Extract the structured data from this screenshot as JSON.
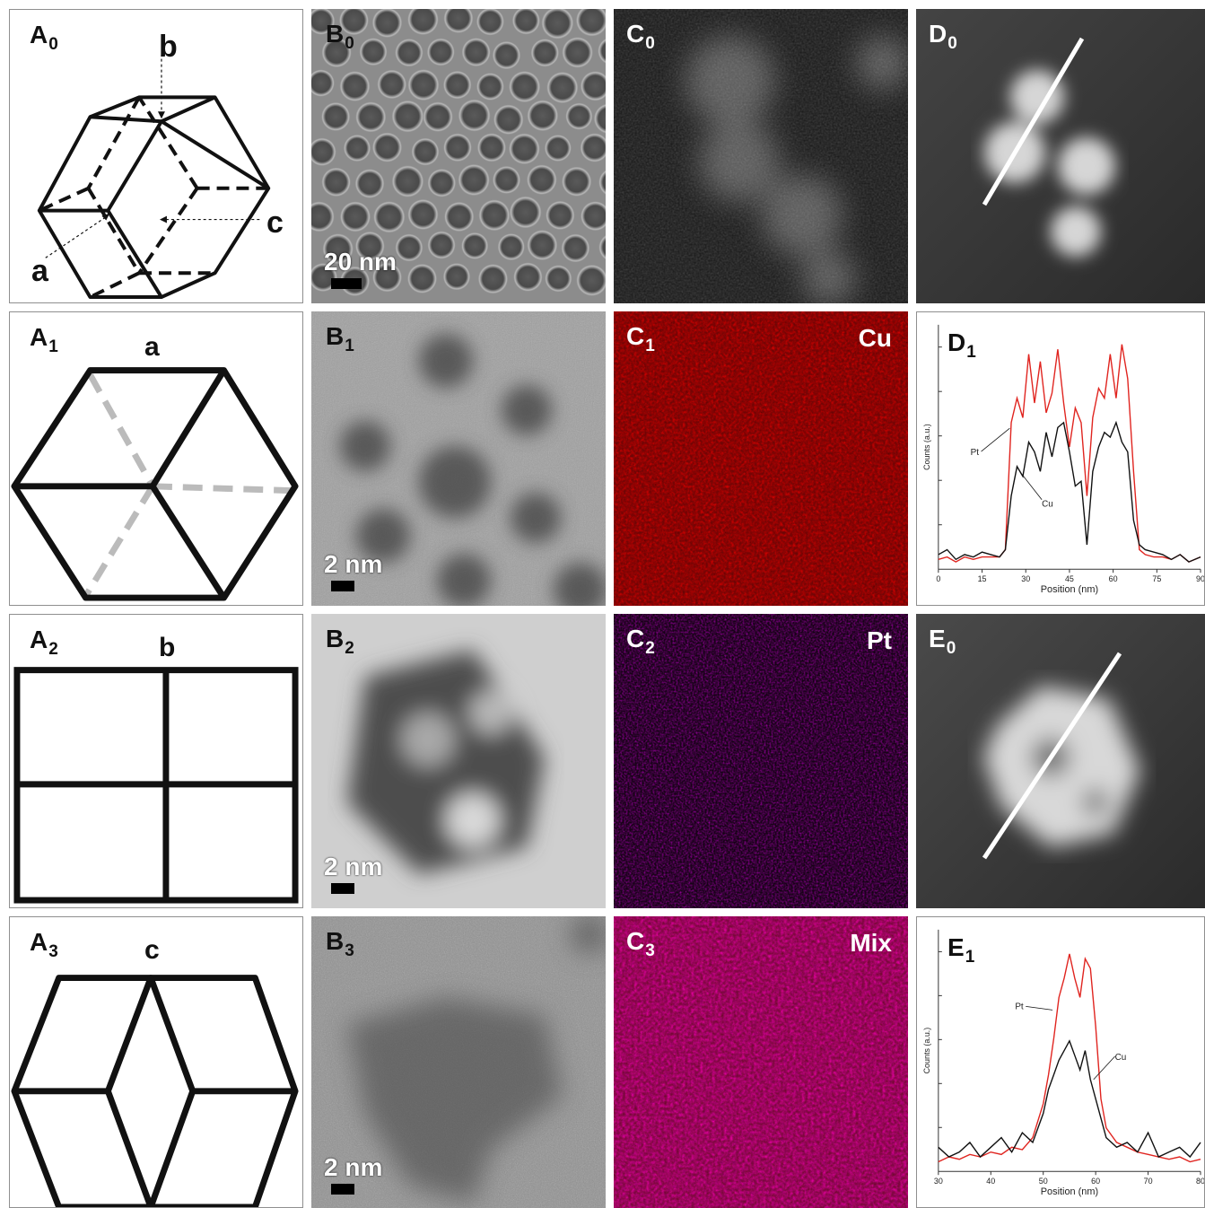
{
  "panels": {
    "A0": {
      "letter": "A",
      "sub": "0",
      "labels": {
        "a": "a",
        "b": "b",
        "c": "c"
      }
    },
    "A1": {
      "letter": "A",
      "sub": "1",
      "view": "a"
    },
    "A2": {
      "letter": "A",
      "sub": "2",
      "view": "b"
    },
    "A3": {
      "letter": "A",
      "sub": "3",
      "view": "c"
    },
    "B0": {
      "letter": "B",
      "sub": "0",
      "scale": "20 nm"
    },
    "B1": {
      "letter": "B",
      "sub": "1",
      "scale": "2 nm"
    },
    "B2": {
      "letter": "B",
      "sub": "2",
      "scale": "2 nm"
    },
    "B3": {
      "letter": "B",
      "sub": "3",
      "scale": "2 nm"
    },
    "C0": {
      "letter": "C",
      "sub": "0"
    },
    "C1": {
      "letter": "C",
      "sub": "1",
      "element": "Cu"
    },
    "C2": {
      "letter": "C",
      "sub": "2",
      "element": "Pt"
    },
    "C3": {
      "letter": "C",
      "sub": "3",
      "element": "Mix"
    },
    "D0": {
      "letter": "D",
      "sub": "0"
    },
    "D1": {
      "letter": "D",
      "sub": "1"
    },
    "E0": {
      "letter": "E",
      "sub": "0"
    },
    "E1": {
      "letter": "E",
      "sub": "1"
    }
  },
  "colors": {
    "pt": "#e0241f",
    "cu": "#111111",
    "cu_map": "#d01010",
    "pt_map": "#8a1a90",
    "mix_map": "#e0305a"
  },
  "chart_data": [
    {
      "id": "D1",
      "type": "line",
      "xlabel": "Position (nm)",
      "ylabel": "Counts (a.u.)",
      "xlim": [
        0,
        90
      ],
      "xticks": [
        "0",
        "15",
        "30",
        "45",
        "60",
        "75",
        "90"
      ],
      "annotations": [
        "Pt",
        "Cu"
      ],
      "series": [
        {
          "name": "Pt",
          "color": "#e0241f",
          "x": [
            0,
            3,
            6,
            9,
            12,
            15,
            18,
            21,
            23,
            25,
            27,
            29,
            31,
            33,
            35,
            37,
            39,
            41,
            43,
            45,
            47,
            49,
            51,
            53,
            55,
            57,
            59,
            61,
            63,
            65,
            67,
            69,
            71,
            74,
            77,
            80,
            83,
            86,
            90
          ],
          "y": [
            4,
            5,
            3,
            5,
            4,
            5,
            5,
            5,
            8,
            60,
            70,
            62,
            88,
            68,
            85,
            64,
            72,
            90,
            68,
            50,
            66,
            60,
            30,
            62,
            74,
            70,
            88,
            70,
            92,
            78,
            40,
            8,
            6,
            5,
            5,
            4,
            6,
            3,
            5
          ]
        },
        {
          "name": "Cu",
          "color": "#111111",
          "x": [
            0,
            3,
            6,
            9,
            12,
            15,
            18,
            21,
            23,
            25,
            27,
            29,
            31,
            33,
            35,
            37,
            39,
            41,
            43,
            45,
            47,
            49,
            51,
            53,
            55,
            57,
            59,
            61,
            63,
            65,
            67,
            69,
            71,
            74,
            77,
            80,
            83,
            86,
            90
          ],
          "y": [
            6,
            8,
            4,
            6,
            5,
            7,
            6,
            5,
            8,
            30,
            42,
            38,
            52,
            48,
            40,
            56,
            46,
            58,
            60,
            48,
            34,
            36,
            10,
            40,
            50,
            56,
            54,
            60,
            52,
            48,
            20,
            10,
            8,
            7,
            6,
            4,
            6,
            3,
            5
          ]
        }
      ]
    },
    {
      "id": "E1",
      "type": "line",
      "xlabel": "Position (nm)",
      "ylabel": "Counts (a.u.)",
      "xlim": [
        30,
        80
      ],
      "xticks": [
        "30",
        "40",
        "50",
        "60",
        "70",
        "80"
      ],
      "annotations": [
        "Pt",
        "Cu"
      ],
      "series": [
        {
          "name": "Pt",
          "color": "#e0241f",
          "x": [
            30,
            32,
            34,
            36,
            38,
            40,
            42,
            44,
            46,
            48,
            50,
            51,
            52,
            53,
            54,
            55,
            56,
            57,
            58,
            59,
            60,
            61,
            62,
            64,
            66,
            68,
            70,
            72,
            74,
            76,
            78,
            80
          ],
          "y": [
            4,
            6,
            5,
            7,
            6,
            8,
            7,
            10,
            9,
            14,
            28,
            40,
            55,
            72,
            80,
            90,
            80,
            72,
            88,
            84,
            60,
            30,
            18,
            12,
            10,
            8,
            7,
            6,
            5,
            6,
            4,
            5
          ]
        },
        {
          "name": "Cu",
          "color": "#111111",
          "x": [
            30,
            32,
            34,
            36,
            38,
            40,
            42,
            44,
            46,
            48,
            50,
            51,
            52,
            53,
            54,
            55,
            56,
            57,
            58,
            59,
            60,
            61,
            62,
            64,
            66,
            68,
            70,
            72,
            74,
            76,
            78,
            80
          ],
          "y": [
            10,
            6,
            8,
            12,
            6,
            10,
            14,
            8,
            16,
            12,
            24,
            34,
            40,
            46,
            50,
            54,
            48,
            42,
            50,
            38,
            30,
            22,
            14,
            10,
            12,
            8,
            16,
            6,
            8,
            10,
            6,
            12
          ]
        }
      ]
    }
  ]
}
